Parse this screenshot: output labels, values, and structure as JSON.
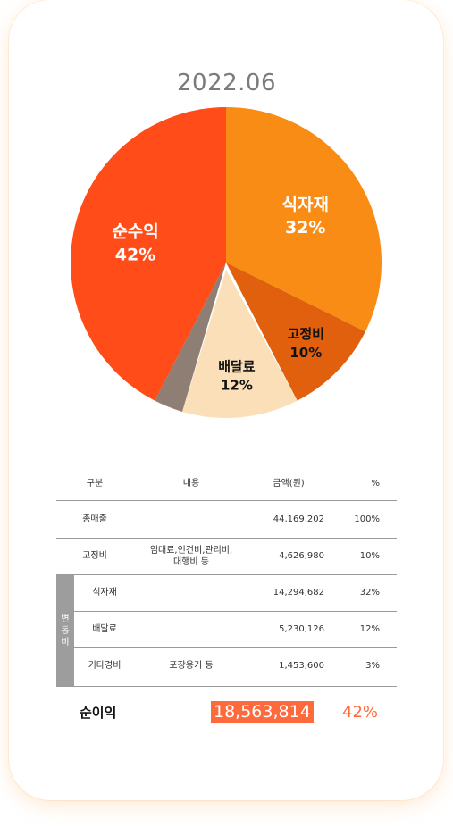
{
  "chart_data": {
    "type": "pie",
    "title": "2022.06",
    "slices": [
      {
        "label": "식자재",
        "value": 32,
        "pct_label": "32%",
        "color": "#f98c14",
        "label_color": "#ffffff"
      },
      {
        "label": "고정비",
        "value": 10,
        "pct_label": "10%",
        "color": "#e0600e",
        "label_color": "#111111"
      },
      {
        "label": "배달료",
        "value": 12,
        "pct_label": "12%",
        "color": "#fadfb8",
        "label_color": "#111111"
      },
      {
        "label": "",
        "value": 3,
        "pct_label": "",
        "color": "#8e7e74",
        "label_color": "#ffffff"
      },
      {
        "label": "순수익",
        "value": 42,
        "pct_label": "42%",
        "color": "#ff4c18",
        "label_color": "#ffffff"
      }
    ]
  },
  "table": {
    "headers": {
      "name": "구분",
      "desc": "내용",
      "amount": "금액(원)",
      "pct": "%"
    },
    "rows": [
      {
        "name": "총매출",
        "desc1": "",
        "desc2": "",
        "amount": "44,169,202",
        "pct": "100%"
      },
      {
        "name": "고정비",
        "desc1": "임대료,인건비,관리비,",
        "desc2": "대행비 등",
        "amount": "4,626,980",
        "pct": "10%"
      },
      {
        "name": "식자재",
        "desc1": "",
        "desc2": "",
        "amount": "14,294,682",
        "pct": "32%"
      },
      {
        "name": "배달료",
        "desc1": "",
        "desc2": "",
        "amount": "5,230,126",
        "pct": "12%"
      },
      {
        "name": "기타경비",
        "desc1": "포장용기 등",
        "desc2": "",
        "amount": "1,453,600",
        "pct": "3%"
      }
    ],
    "group_label": [
      "변",
      "동",
      "비"
    ],
    "net": {
      "label": "순이익",
      "amount": "18,563,814",
      "pct": "42%"
    }
  }
}
